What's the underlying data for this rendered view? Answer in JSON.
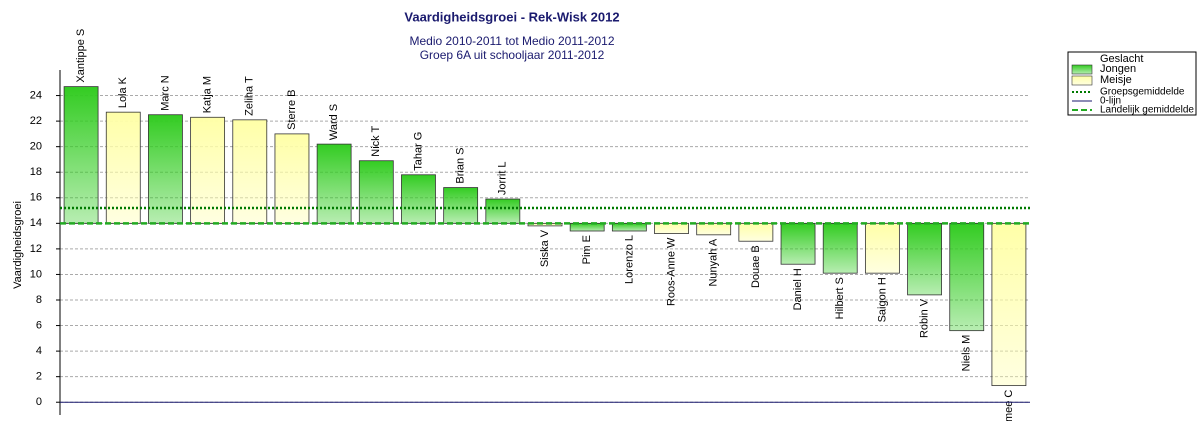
{
  "chart_data": {
    "type": "bar",
    "title": "Vaardigheidsgroei - Rek-Wisk 2012",
    "subtitle": [
      "Medio 2010-2011 tot Medio 2011-2012",
      "Groep 6A uit schooljaar 2011-2012"
    ],
    "y_label": "Vaardigheidsgroei",
    "legend_title": "Geslacht",
    "categories": [
      "Xantippe S",
      "Lola K",
      "Marc N",
      "Katja M",
      "Zeliha T",
      "Sterre B",
      "Ward S",
      "Nick T",
      "Tahar G",
      "Brian S",
      "Jorrit L",
      "Siska V",
      "Pim E",
      "Lorenzo L",
      "Roos-Anne W",
      "Nunyah A",
      "Douae B",
      "Daniel H",
      "Hilbert S",
      "Saigon H",
      "Robin V",
      "Niels M",
      "mee C"
    ],
    "series": [
      {
        "name": "Jongen",
        "color": "#33cc22",
        "values": [
          24.7,
          null,
          22.5,
          null,
          null,
          null,
          20.2,
          18.9,
          17.8,
          16.8,
          15.9,
          null,
          13.4,
          13.4,
          null,
          null,
          null,
          10.8,
          10.1,
          null,
          8.4,
          5.6,
          null
        ]
      },
      {
        "name": "Meisje",
        "color": "#ffffa8",
        "values": [
          null,
          22.7,
          null,
          22.3,
          22.1,
          21.0,
          null,
          null,
          null,
          null,
          null,
          13.8,
          null,
          null,
          13.2,
          13.1,
          12.6,
          null,
          null,
          10.1,
          null,
          null,
          1.3
        ]
      }
    ],
    "reference_lines": [
      {
        "name": "Groepsgemiddelde",
        "value": 15.2,
        "color": "#007a00",
        "style": "dotted"
      },
      {
        "name": "0-lijn",
        "value": 0,
        "color": "#1a1a6e",
        "style": "solid"
      },
      {
        "name": "Landelijk gemiddelde",
        "value": 14,
        "color": "#22aa22",
        "style": "dashed"
      }
    ],
    "ylim": [
      -1,
      26
    ],
    "yticks": [
      0,
      2,
      4,
      6,
      8,
      10,
      12,
      14,
      16,
      18,
      20,
      22,
      24
    ],
    "grid": true
  }
}
